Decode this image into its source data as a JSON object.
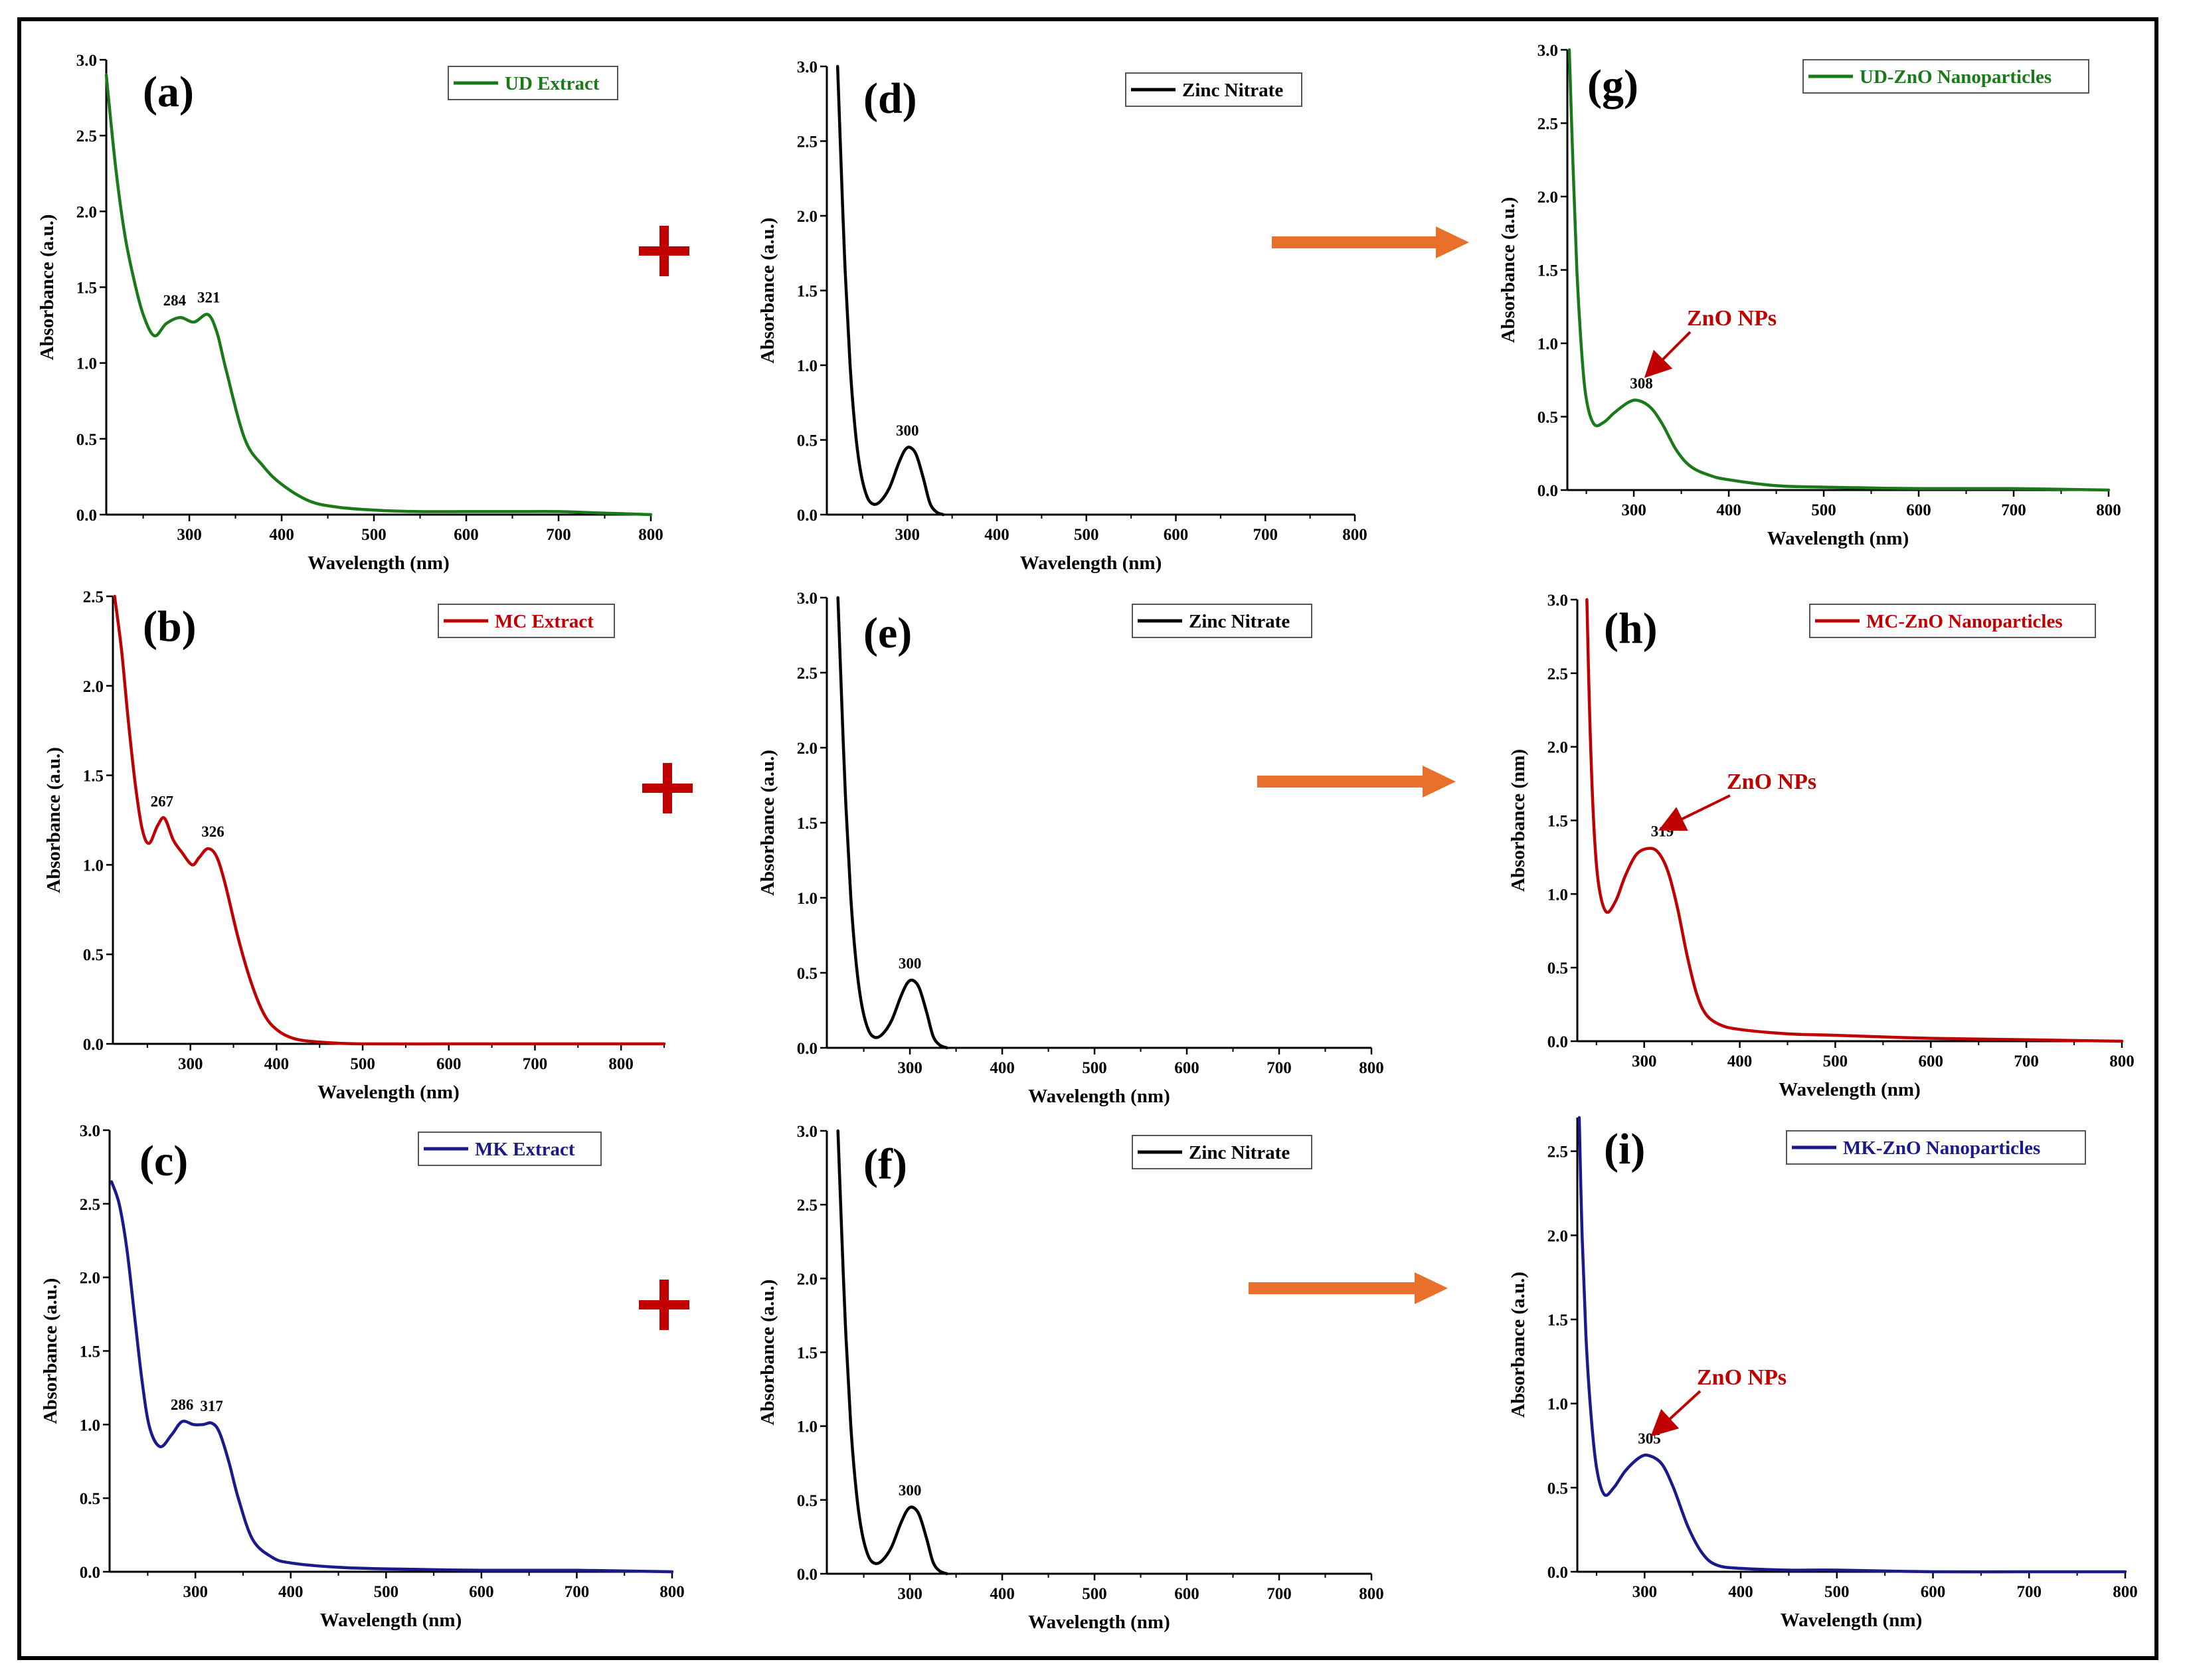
{
  "figure": {
    "plus_color": "#c00000",
    "arrow_color": "#e8702a",
    "annotation_color": "#c00000"
  },
  "chart_data": [
    {
      "id": "a",
      "type": "line",
      "panel_label": "(a)",
      "legend": "UD Extract",
      "color": "#1a7a1a",
      "xlabel": "Wavelength (nm)",
      "ylabel": "Absorbance (a.u.)",
      "xlim": [
        210,
        800
      ],
      "ylim": [
        0,
        3.0
      ],
      "xticks": [
        300,
        400,
        500,
        600,
        700,
        800
      ],
      "yticks": [
        0.0,
        0.5,
        1.0,
        1.5,
        2.0,
        2.5,
        3.0
      ],
      "x": [
        210,
        220,
        230,
        240,
        250,
        262,
        275,
        290,
        305,
        320,
        330,
        340,
        360,
        380,
        400,
        430,
        460,
        500,
        550,
        600,
        650,
        700,
        750,
        800
      ],
      "y": [
        2.9,
        2.3,
        1.85,
        1.55,
        1.32,
        1.18,
        1.26,
        1.3,
        1.27,
        1.32,
        1.2,
        0.95,
        0.5,
        0.32,
        0.2,
        0.09,
        0.05,
        0.03,
        0.02,
        0.02,
        0.02,
        0.02,
        0.01,
        0.0
      ],
      "peaks": [
        {
          "x": 284,
          "y": 1.3,
          "label": "284"
        },
        {
          "x": 321,
          "y": 1.32,
          "label": "321"
        }
      ]
    },
    {
      "id": "d",
      "type": "line",
      "panel_label": "(d)",
      "legend": "Zinc Nitrate",
      "color": "#000000",
      "xlabel": "Wavelength (nm)",
      "ylabel": "Absorbance (a.u.)",
      "xlim": [
        210,
        800
      ],
      "ylim": [
        0,
        3.0
      ],
      "xticks": [
        300,
        400,
        500,
        600,
        700,
        800
      ],
      "yticks": [
        0.0,
        0.5,
        1.0,
        1.5,
        2.0,
        2.5,
        3.0
      ],
      "x": [
        222,
        225,
        230,
        236,
        242,
        248,
        255,
        262,
        270,
        280,
        290,
        297,
        303,
        310,
        318,
        325,
        332,
        340
      ],
      "y": [
        3.0,
        2.5,
        1.7,
        1.0,
        0.55,
        0.28,
        0.12,
        0.07,
        0.09,
        0.18,
        0.34,
        0.43,
        0.45,
        0.4,
        0.24,
        0.08,
        0.02,
        0.0
      ],
      "peaks": [
        {
          "x": 300,
          "y": 0.45,
          "label": "300"
        }
      ]
    },
    {
      "id": "g",
      "type": "line",
      "panel_label": "(g)",
      "legend": "UD-ZnO Nanoparticles",
      "color": "#1a7a1a",
      "xlabel": "Wavelength (nm)",
      "ylabel": "Absorbance (a.u.)",
      "xlim": [
        230,
        800
      ],
      "ylim": [
        0,
        3.0
      ],
      "xticks": [
        300,
        400,
        500,
        600,
        700,
        800
      ],
      "yticks": [
        0.0,
        0.5,
        1.0,
        1.5,
        2.0,
        2.5,
        3.0
      ],
      "x": [
        232,
        236,
        240,
        245,
        250,
        258,
        268,
        280,
        295,
        305,
        318,
        330,
        345,
        360,
        380,
        400,
        450,
        500,
        600,
        700,
        800
      ],
      "y": [
        3.0,
        2.2,
        1.5,
        0.95,
        0.62,
        0.45,
        0.46,
        0.53,
        0.6,
        0.61,
        0.56,
        0.45,
        0.27,
        0.16,
        0.1,
        0.07,
        0.03,
        0.02,
        0.01,
        0.01,
        0.0
      ],
      "peaks": [
        {
          "x": 308,
          "y": 0.61,
          "label": "308"
        }
      ],
      "annotation": "ZnO NPs"
    },
    {
      "id": "b",
      "type": "line",
      "panel_label": "(b)",
      "legend": "MC Extract",
      "color": "#c00000",
      "xlabel": "Wavelength (nm)",
      "ylabel": "Absorbance (a.u.)",
      "xlim": [
        210,
        850
      ],
      "ylim": [
        0,
        2.5
      ],
      "xticks": [
        300,
        400,
        500,
        600,
        700,
        800
      ],
      "yticks": [
        0.0,
        0.5,
        1.0,
        1.5,
        2.0,
        2.5
      ],
      "x": [
        212,
        220,
        228,
        236,
        244,
        252,
        262,
        270,
        280,
        290,
        302,
        310,
        320,
        330,
        340,
        355,
        370,
        385,
        400,
        420,
        450,
        500,
        600,
        700,
        850
      ],
      "y": [
        2.5,
        2.2,
        1.8,
        1.45,
        1.2,
        1.12,
        1.22,
        1.26,
        1.14,
        1.07,
        1.0,
        1.04,
        1.09,
        1.05,
        0.9,
        0.6,
        0.35,
        0.17,
        0.08,
        0.03,
        0.01,
        0.0,
        0.0,
        0.0,
        0.0
      ],
      "peaks": [
        {
          "x": 267,
          "y": 1.26,
          "label": "267"
        },
        {
          "x": 326,
          "y": 1.09,
          "label": "326"
        }
      ]
    },
    {
      "id": "e",
      "type": "line",
      "panel_label": "(e)",
      "legend": "Zinc Nitrate",
      "color": "#000000",
      "xlabel": "Wavelength (nm)",
      "ylabel": "Absorbance (a.u.)",
      "xlim": [
        210,
        800
      ],
      "ylim": [
        0,
        3.0
      ],
      "xticks": [
        300,
        400,
        500,
        600,
        700,
        800
      ],
      "yticks": [
        0.0,
        0.5,
        1.0,
        1.5,
        2.0,
        2.5,
        3.0
      ],
      "x": [
        222,
        225,
        230,
        236,
        242,
        248,
        255,
        262,
        270,
        280,
        290,
        297,
        303,
        310,
        318,
        325,
        332,
        340
      ],
      "y": [
        3.0,
        2.5,
        1.7,
        1.0,
        0.55,
        0.28,
        0.12,
        0.07,
        0.09,
        0.18,
        0.34,
        0.43,
        0.45,
        0.4,
        0.24,
        0.08,
        0.02,
        0.0
      ],
      "peaks": [
        {
          "x": 300,
          "y": 0.45,
          "label": "300"
        }
      ]
    },
    {
      "id": "h",
      "type": "line",
      "panel_label": "(h)",
      "legend": "MC-ZnO Nanoparticles",
      "color": "#c00000",
      "xlabel": "Wavelength (nm)",
      "ylabel": "Absorbance (nm)",
      "xlim": [
        230,
        800
      ],
      "ylim": [
        0,
        3.0
      ],
      "xticks": [
        300,
        400,
        500,
        600,
        700,
        800
      ],
      "yticks": [
        0.0,
        0.5,
        1.0,
        1.5,
        2.0,
        2.5,
        3.0
      ],
      "x": [
        240,
        243,
        247,
        252,
        260,
        270,
        280,
        292,
        305,
        315,
        325,
        335,
        345,
        355,
        365,
        380,
        400,
        450,
        500,
        600,
        700,
        800
      ],
      "y": [
        3.0,
        2.2,
        1.5,
        1.08,
        0.88,
        0.95,
        1.12,
        1.27,
        1.31,
        1.28,
        1.15,
        0.9,
        0.58,
        0.32,
        0.18,
        0.11,
        0.08,
        0.05,
        0.04,
        0.02,
        0.01,
        0.0
      ],
      "peaks": [
        {
          "x": 319,
          "y": 1.31,
          "label": "319"
        }
      ],
      "annotation": "ZnO NPs"
    },
    {
      "id": "c",
      "type": "line",
      "panel_label": "(c)",
      "legend": "MK Extract",
      "color": "#1a1a8a",
      "xlabel": "Wavelength (nm)",
      "ylabel": "Absorbance (a.u.)",
      "xlim": [
        210,
        800
      ],
      "ylim": [
        0,
        3.0
      ],
      "xticks": [
        300,
        400,
        500,
        600,
        700,
        800
      ],
      "yticks": [
        0.0,
        0.5,
        1.0,
        1.5,
        2.0,
        2.5,
        3.0
      ],
      "x": [
        212,
        220,
        228,
        236,
        244,
        252,
        263,
        275,
        286,
        298,
        308,
        317,
        325,
        335,
        345,
        360,
        380,
        400,
        450,
        500,
        600,
        700,
        800
      ],
      "y": [
        2.65,
        2.5,
        2.2,
        1.75,
        1.3,
        0.98,
        0.85,
        0.93,
        1.02,
        1.0,
        1.0,
        1.01,
        0.95,
        0.75,
        0.5,
        0.22,
        0.1,
        0.06,
        0.03,
        0.02,
        0.01,
        0.01,
        0.0
      ],
      "peaks": [
        {
          "x": 286,
          "y": 1.02,
          "label": "286"
        },
        {
          "x": 317,
          "y": 1.01,
          "label": "317"
        }
      ]
    },
    {
      "id": "f",
      "type": "line",
      "panel_label": "(f)",
      "legend": "Zinc Nitrate",
      "color": "#000000",
      "xlabel": "Wavelength (nm)",
      "ylabel": "Absorbance (a.u.)",
      "xlim": [
        210,
        800
      ],
      "ylim": [
        0,
        3.0
      ],
      "xticks": [
        300,
        400,
        500,
        600,
        700,
        800
      ],
      "yticks": [
        0.0,
        0.5,
        1.0,
        1.5,
        2.0,
        2.5,
        3.0
      ],
      "x": [
        222,
        225,
        230,
        236,
        242,
        248,
        255,
        262,
        270,
        280,
        290,
        297,
        303,
        310,
        318,
        325,
        332,
        340
      ],
      "y": [
        3.0,
        2.5,
        1.7,
        1.0,
        0.55,
        0.28,
        0.12,
        0.07,
        0.09,
        0.18,
        0.34,
        0.43,
        0.45,
        0.4,
        0.24,
        0.08,
        0.02,
        0.0
      ],
      "peaks": [
        {
          "x": 300,
          "y": 0.45,
          "label": "300"
        }
      ]
    },
    {
      "id": "i",
      "type": "line",
      "panel_label": "(i)",
      "legend": "MK-ZnO Nanoparticles",
      "color": "#1a1a8a",
      "xlabel": "Wavelength (nm)",
      "ylabel": "Absorbance (a.u.)",
      "xlim": [
        230,
        800
      ],
      "ylim": [
        0,
        2.7
      ],
      "xticks": [
        300,
        400,
        500,
        600,
        700,
        800
      ],
      "yticks": [
        0.0,
        0.5,
        1.0,
        1.5,
        2.0,
        2.5
      ],
      "x": [
        232,
        235,
        239,
        244,
        250,
        258,
        268,
        280,
        295,
        305,
        318,
        330,
        345,
        360,
        375,
        400,
        450,
        500,
        600,
        700,
        800
      ],
      "y": [
        2.7,
        2.0,
        1.4,
        0.95,
        0.62,
        0.46,
        0.5,
        0.6,
        0.68,
        0.69,
        0.64,
        0.5,
        0.27,
        0.11,
        0.04,
        0.02,
        0.01,
        0.01,
        0.0,
        0.0,
        0.0
      ],
      "peaks": [
        {
          "x": 305,
          "y": 0.69,
          "label": "305"
        }
      ],
      "annotation": "ZnO NPs"
    }
  ]
}
